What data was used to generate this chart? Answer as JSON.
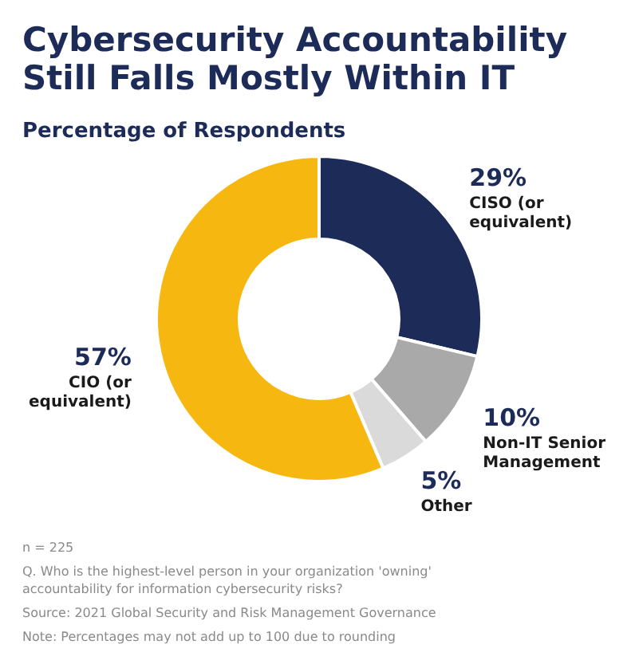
{
  "chart_data": {
    "type": "donut",
    "title": "Cybersecurity Accountability Still Falls Mostly Within IT",
    "subtitle": "Percentage of Respondents",
    "categories": [
      "CISO (or equivalent)",
      "Non-IT Senior Management",
      "Other",
      "CIO (or equivalent)"
    ],
    "values": [
      29,
      10,
      5,
      57
    ],
    "colors": [
      "#1c2b58",
      "#a9a9a9",
      "#dadada",
      "#f6b810"
    ],
    "value_labels": [
      "29%",
      "10%",
      "5%",
      "57%"
    ],
    "annotations": [
      "n = 225",
      "Q. Who is the highest-level person in your organization 'owning' accountability for information cybersecurity risks?",
      "Source: 2021 Global Security and Risk Management Governance",
      "Note: Percentages may not add up to 100 due to rounding"
    ]
  }
}
